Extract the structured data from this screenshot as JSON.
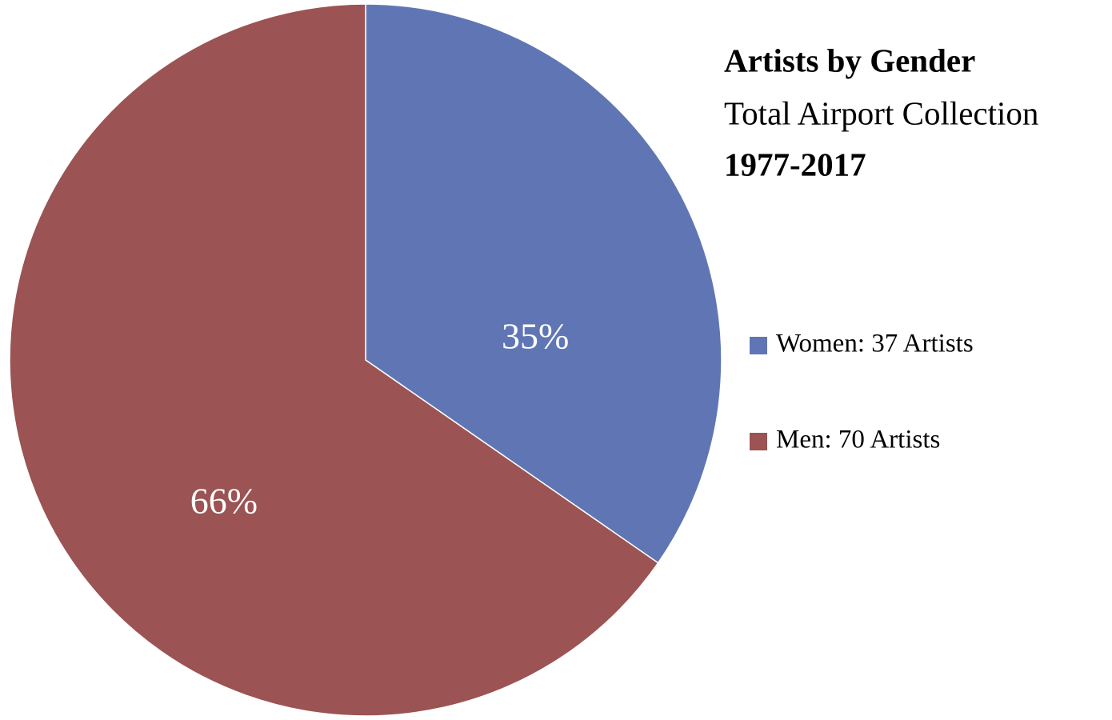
{
  "chart_data": {
    "type": "pie",
    "title": "Artists by Gender",
    "subtitle": "Total Airport Collection",
    "period": "1977-2017",
    "series": [
      {
        "name": "Women: 37 Artists",
        "color": "#6076b4"
      },
      {
        "name": "Men: 70 Artists",
        "color": "#9b5353"
      }
    ],
    "values": [
      35,
      66
    ],
    "value_labels": [
      "35%",
      "66%"
    ]
  }
}
